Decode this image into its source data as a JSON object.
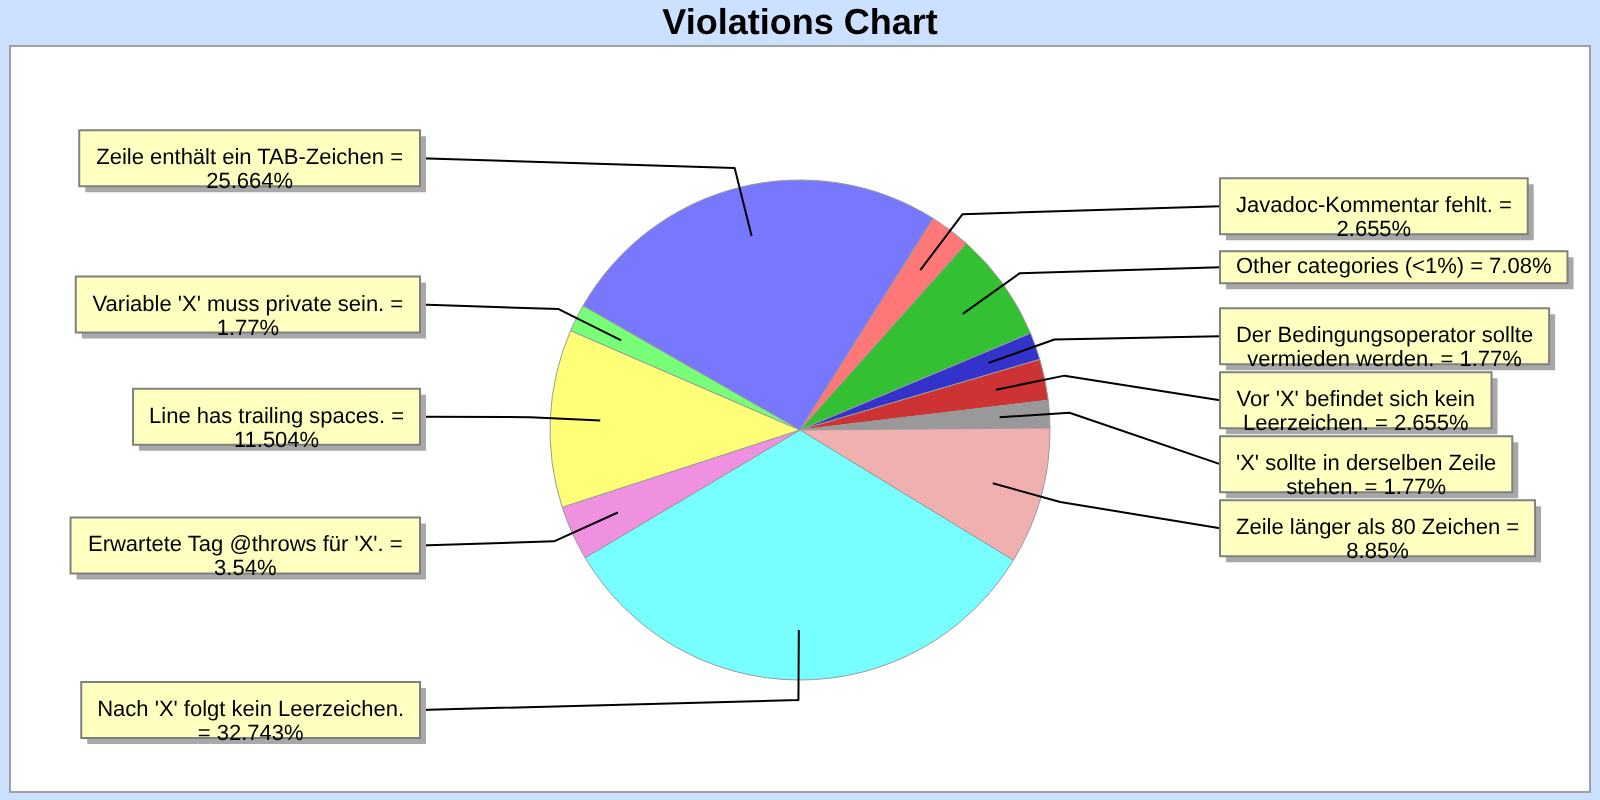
{
  "chart_data": {
    "type": "pie",
    "title": "Violations Chart",
    "categories": [
      "Zeile enthält ein TAB-Zeichen = 25.664%",
      "Javadoc-Kommentar fehlt. = 2.655%",
      "Other categories (<1%) = 7.08%",
      "Der Bedingungsoperator sollte vermieden werden. = 1.77%",
      "Vor 'X' befindet sich kein Leerzeichen. = 2.655%",
      "'X' sollte in derselben Zeile stehen. = 1.77%",
      "Zeile länger als 80 Zeichen = 8.85%",
      "Nach 'X' folgt kein Leerzeichen. = 32.743%",
      "Erwartete Tag @throws für 'X'. = 3.54%",
      "Line has trailing spaces. = 11.504%",
      "Variable 'X' muss private sein. = 1.77%"
    ],
    "values": [
      25.664,
      2.655,
      7.08,
      1.77,
      2.655,
      1.77,
      8.85,
      32.743,
      3.54,
      11.504,
      1.77
    ],
    "colors": [
      "#7878ff",
      "#ff7777",
      "#33c033",
      "#3333cc",
      "#cd3333",
      "#999999",
      "#f0b0b0",
      "#77ffff",
      "#f090e0",
      "#ffff77",
      "#77ff77"
    ]
  }
}
